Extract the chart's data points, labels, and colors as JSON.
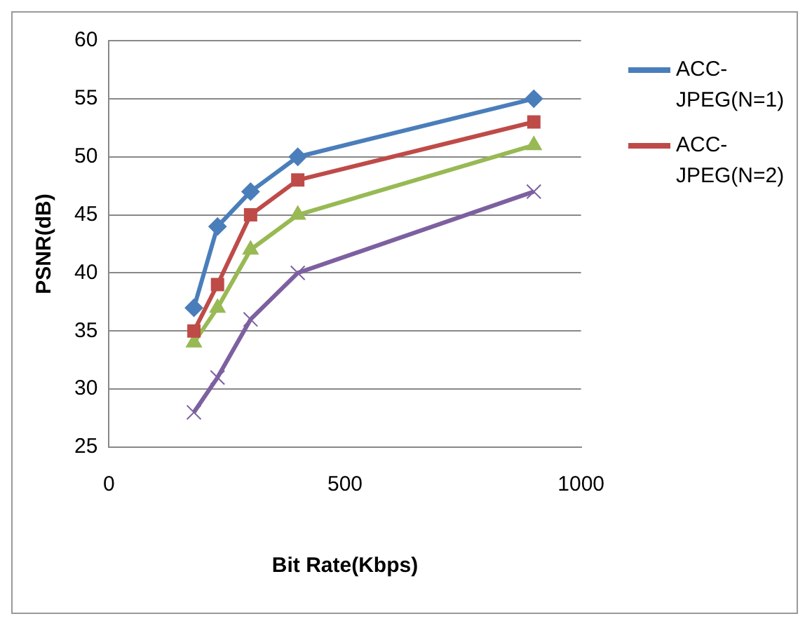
{
  "chart_data": {
    "type": "line",
    "xlabel": "Bit Rate(Kbps)",
    "ylabel": "PSNR(dB)",
    "x": [
      180,
      230,
      300,
      400,
      900
    ],
    "xlim": [
      0,
      1000
    ],
    "xticks": [
      0,
      500,
      1000
    ],
    "ylim": [
      25,
      60
    ],
    "yticks": [
      25,
      30,
      35,
      40,
      45,
      50,
      55,
      60
    ],
    "grid": "y",
    "legend": "top right",
    "series": [
      {
        "name": "ACC-JPEG(N=1)",
        "color": "#4a7ebb",
        "marker": "diamond",
        "values": [
          37,
          44,
          47,
          50,
          55
        ]
      },
      {
        "name": "ACC-JPEG(N=2)",
        "color": "#be4b48",
        "marker": "square",
        "values": [
          35,
          39,
          45,
          48,
          53
        ]
      },
      {
        "color": "#98b954",
        "marker": "triangle",
        "values": [
          34,
          37,
          42,
          45,
          51
        ]
      },
      {
        "color": "#7d60a0",
        "marker": "cross",
        "values": [
          28,
          31,
          36,
          40,
          47
        ]
      }
    ]
  }
}
